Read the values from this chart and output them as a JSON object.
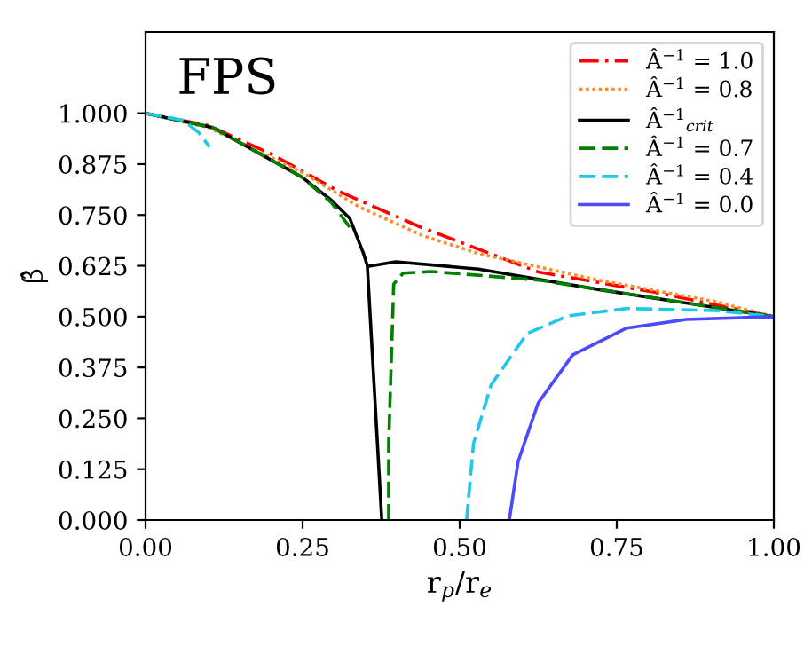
{
  "chart_data": {
    "type": "line",
    "xlabel": "r$_{p}$/r$_{e}$",
    "ylabel": "β̂",
    "annotations": [
      "FPS"
    ],
    "xlim": [
      0,
      1
    ],
    "ylim": [
      0,
      1.2
    ],
    "xticks": [
      {
        "value": 0,
        "label": "0.00"
      },
      {
        "value": 0.25,
        "label": "0.25"
      },
      {
        "value": 0.5,
        "label": "0.50"
      },
      {
        "value": 0.75,
        "label": "0.75"
      },
      {
        "value": 1,
        "label": "1.00"
      }
    ],
    "yticks": [
      {
        "value": 0,
        "label": "0.000"
      },
      {
        "value": 0.125,
        "label": "0.125"
      },
      {
        "value": 0.25,
        "label": "0.250"
      },
      {
        "value": 0.375,
        "label": "0.375"
      },
      {
        "value": 0.5,
        "label": "0.500"
      },
      {
        "value": 0.625,
        "label": "0.625"
      },
      {
        "value": 0.75,
        "label": "0.750"
      },
      {
        "value": 0.875,
        "label": "0.875"
      },
      {
        "value": 1,
        "label": "1.000"
      }
    ],
    "grid": false,
    "legend": "top right",
    "marker": "none",
    "series": [
      {
        "name": "Â$^{−1}$ = 1.0",
        "color": "#ff0000",
        "line_style": "dashdot",
        "x": [
          0,
          0.1,
          0.2,
          0.305,
          0.438,
          0.625,
          0.81,
          1.0
        ],
        "values": [
          1.0,
          0.97,
          0.9,
          0.81,
          0.72,
          0.61,
          0.56,
          0.5
        ]
      },
      {
        "name": "Â$^{−1}$ = 0.8",
        "color": "#ff8c2a",
        "line_style": "dotted",
        "x": [
          0,
          0.1,
          0.249,
          0.34,
          0.44,
          0.53,
          0.72,
          0.907,
          1.0
        ],
        "values": [
          1.0,
          0.965,
          0.855,
          0.77,
          0.7,
          0.655,
          0.59,
          0.537,
          0.5
        ]
      },
      {
        "name": "Â$^{−1}$$_{crit}$",
        "color": "#000000",
        "line_style": "solid",
        "x": [
          0,
          0.107,
          0.249,
          0.296,
          0.325,
          0.347,
          0.353,
          0.376,
          null,
          0.356,
          0.398,
          0.53,
          0.72,
          1.0
        ],
        "values": [
          1.0,
          0.965,
          0.843,
          0.786,
          0.742,
          0.655,
          0.625,
          0,
          null,
          0.624,
          0.635,
          0.617,
          0.567,
          0.5
        ]
      },
      {
        "name": "Â$^{−1}$ = 0.7",
        "color": "#008000",
        "line_style": "dashed",
        "x": [
          0,
          0.107,
          0.249,
          0.296,
          0.325,
          null,
          0.387,
          0.387,
          0.395,
          0.41,
          0.455,
          0.625,
          0.81,
          1.0
        ],
        "values": [
          1.0,
          0.965,
          0.843,
          0.78,
          0.72,
          null,
          0,
          0.188,
          0.58,
          0.607,
          0.611,
          0.59,
          0.546,
          0.5
        ]
      },
      {
        "name": "Â$^{−1}$ = 0.4",
        "color": "#1ec8e6",
        "line_style": "dashed",
        "x": [
          0,
          0.06,
          0.085,
          0.102,
          null,
          0.511,
          0.522,
          0.55,
          0.607,
          0.672,
          0.766,
          0.907,
          1.0
        ],
        "values": [
          1.0,
          0.983,
          0.952,
          0.917,
          null,
          0,
          0.188,
          0.332,
          0.458,
          0.502,
          0.52,
          0.515,
          0.5
        ]
      },
      {
        "name": "Â$^{−1}$ = 0.0",
        "color": "#4a4aff",
        "line_style": "solid",
        "x": [
          0.579,
          0.593,
          0.625,
          0.68,
          0.766,
          0.86,
          1.0
        ],
        "values": [
          0,
          0.144,
          0.288,
          0.406,
          0.472,
          0.493,
          0.5
        ]
      }
    ]
  }
}
